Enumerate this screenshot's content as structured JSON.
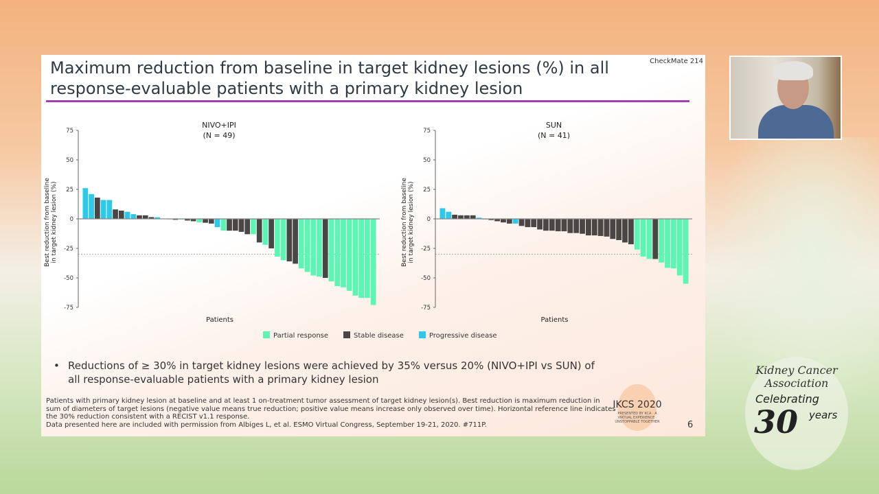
{
  "slide": {
    "title": "Maximum reduction from baseline in target kidney lesions (%) in all response-evaluable patients with a primary kidney lesion",
    "brand": "CheckMate 214",
    "bullet": "Reductions of ≥ 30% in target kidney lesions were achieved by 35% versus 20% (NIVO+IPI vs SUN) of all response-evaluable patients with a primary kidney lesion",
    "footnote_1": "Patients with primary kidney lesion at baseline and at least 1 on-treatment tumor assessment of target kidney lesion(s). Best reduction is maximum reduction in sum of diameters of target lesions (negative value means true reduction; positive value means increase only observed over time). Horizontal reference line indicates the 30% reduction consistent with a RECIST v1.1 response.",
    "footnote_2": "Data presented here are included with permission from Albiges L, et al. ESMO Virtual Congress, September 19-21, 2020. #711P.",
    "page_number": "6",
    "ikcs_logo": "IKCS 2020",
    "ikcs_sub": "PRESENTED BY KCA · A VIRTUAL EXPERIENCE · UNSTOPPABLE TOGETHER"
  },
  "legend": [
    {
      "label": "Partial response",
      "color": "#5cf5b4",
      "key": "PR"
    },
    {
      "label": "Stable disease",
      "color": "#4a4646",
      "key": "SD"
    },
    {
      "label": "Progressive disease",
      "color": "#2ec8e8",
      "key": "PD"
    }
  ],
  "chart_data": [
    {
      "type": "bar",
      "title": "NIVO+IPI",
      "subtitle": "(N = 49)",
      "ylabel": "Best reduction from baseline in target kidney lesion (%)",
      "xlabel": "Patients",
      "ylim": [
        -75,
        75
      ],
      "yticks": [
        75,
        50,
        25,
        0,
        -25,
        -50,
        -75
      ],
      "reference_line": -30,
      "values": [
        26,
        21,
        18,
        16,
        16,
        8,
        7,
        6,
        4,
        3,
        3,
        1.5,
        1.4,
        0.3,
        0,
        -0.8,
        -0.5,
        -1.4,
        -2,
        -3,
        -3.3,
        -4,
        -7,
        -10,
        -10,
        -10,
        -11,
        -13,
        -13,
        -20,
        -22,
        -25,
        -32,
        -35,
        -36,
        -38,
        -42,
        -45,
        -48,
        -49,
        -50,
        -53,
        -57,
        -58,
        -61,
        -65,
        -67,
        -67,
        -73
      ],
      "response": [
        "PD",
        "PD",
        "SD",
        "PD",
        "PD",
        "SD",
        "SD",
        "PD",
        "PD",
        "SD",
        "SD",
        "SD",
        "PD",
        "PR",
        "SD",
        "SD",
        "PR",
        "SD",
        "SD",
        "PR",
        "SD",
        "SD",
        "PD",
        "PR",
        "SD",
        "SD",
        "SD",
        "SD",
        "PR",
        "SD",
        "PR",
        "SD",
        "PR",
        "PR",
        "SD",
        "SD",
        "PR",
        "PR",
        "PR",
        "PR",
        "SD",
        "PR",
        "PR",
        "PR",
        "PR",
        "PR",
        "PR",
        "PR",
        "PR"
      ]
    },
    {
      "type": "bar",
      "title": "SUN",
      "subtitle": "(N = 41)",
      "ylabel": "Best reduction from baseline in target kidney lesion (%)",
      "xlabel": "Patients",
      "ylim": [
        -75,
        75
      ],
      "yticks": [
        75,
        50,
        25,
        0,
        -25,
        -50,
        -75
      ],
      "reference_line": -30,
      "values": [
        9,
        6,
        3.5,
        3,
        3,
        3,
        1,
        -0.4,
        -1,
        -2,
        -3,
        -4,
        -4,
        -6,
        -7,
        -7,
        -9,
        -10,
        -10,
        -10.5,
        -10.5,
        -12,
        -12,
        -12.6,
        -14,
        -14,
        -14.5,
        -15,
        -17,
        -18,
        -20,
        -21.5,
        -26,
        -32,
        -34,
        -34,
        -37,
        -41.5,
        -42,
        -48,
        -55
      ],
      "response": [
        "PD",
        "PD",
        "SD",
        "SD",
        "SD",
        "SD",
        "PD",
        "SD",
        "SD",
        "SD",
        "SD",
        "SD",
        "PD",
        "SD",
        "SD",
        "SD",
        "SD",
        "SD",
        "SD",
        "SD",
        "SD",
        "SD",
        "SD",
        "SD",
        "SD",
        "SD",
        "SD",
        "SD",
        "SD",
        "SD",
        "SD",
        "SD",
        "PR",
        "PR",
        "PR",
        "SD",
        "PR",
        "PR",
        "PR",
        "PR",
        "PR"
      ]
    }
  ],
  "kca_logo": {
    "name": "Kidney Cancer Association",
    "celebrating": "Celebrating",
    "number": "30",
    "years": "years"
  }
}
